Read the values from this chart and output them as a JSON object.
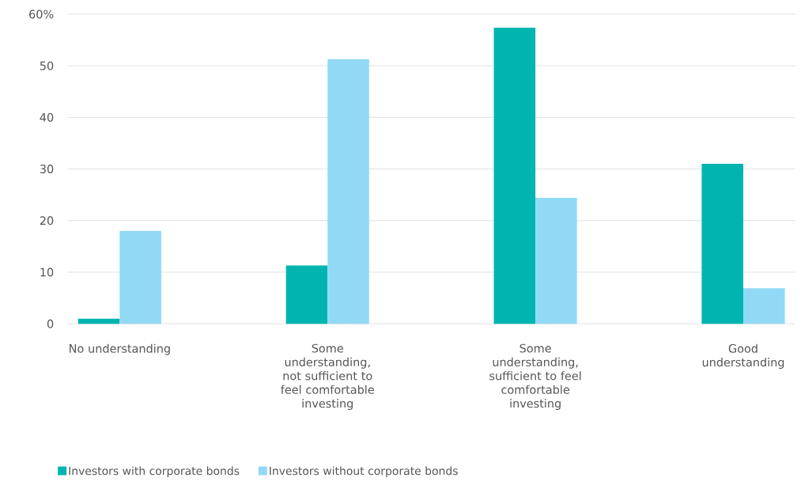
{
  "chart_data": {
    "type": "bar",
    "categories": [
      "No understanding",
      "Some understanding, not sufficient to feel comfortable investing",
      "Some understanding, sufficient to feel comfortable investing",
      "Good understanding"
    ],
    "series": [
      {
        "name": "Investors with corporate bonds",
        "color": "#00b5b0",
        "values": [
          1,
          11.3,
          57.4,
          31
        ]
      },
      {
        "name": "Investors without corporate bonds",
        "color": "#92d9f5",
        "values": [
          18,
          51.3,
          24.4,
          6.9
        ]
      }
    ],
    "ylim": [
      0,
      60
    ],
    "yticks": [
      0,
      10,
      20,
      30,
      40,
      50,
      {
        "value": 60,
        "label": "60%"
      }
    ],
    "grid": "y",
    "legend": "bottom left"
  }
}
